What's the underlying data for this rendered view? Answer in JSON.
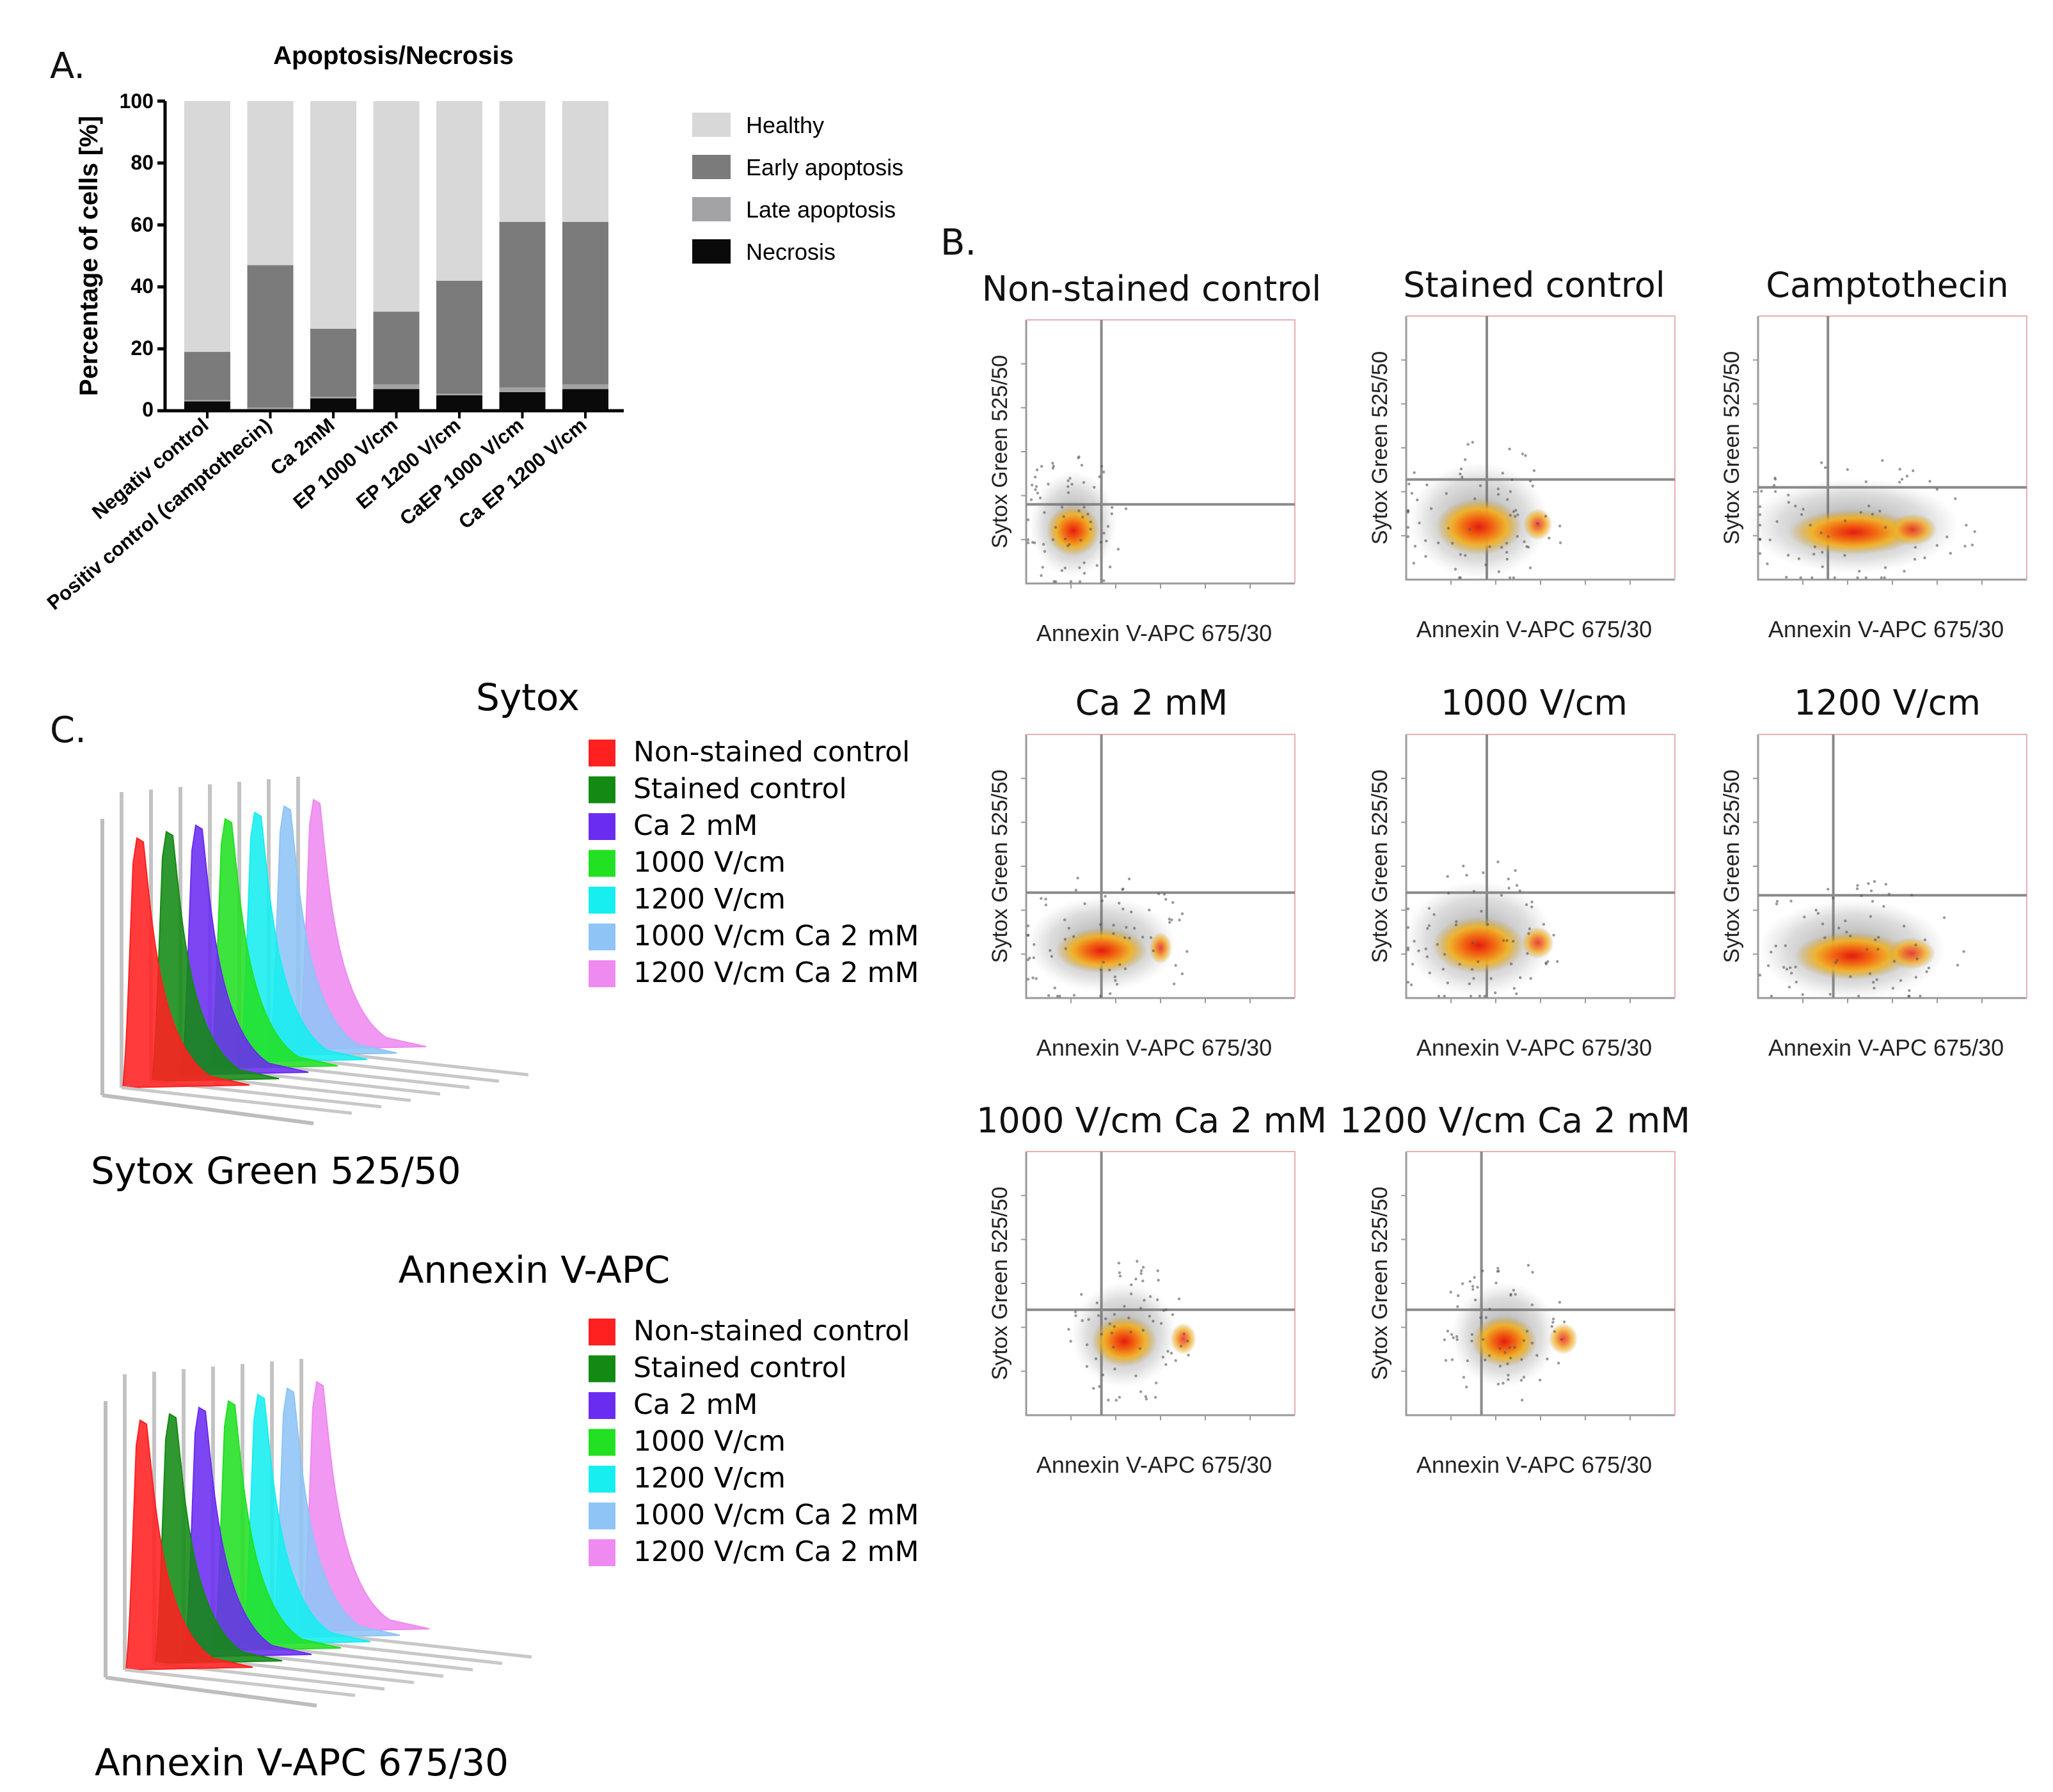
{
  "panels": {
    "a": "A.",
    "b": "B.",
    "c": "C."
  },
  "chart_data": [
    {
      "type": "bar",
      "stacked": true,
      "title": "Apoptosis/Necrosis",
      "xlabel": "",
      "ylabel": "Percentage of cells [%]",
      "ylim": [
        0,
        100
      ],
      "yticks": [
        "0",
        "20",
        "40",
        "60",
        "80",
        "100"
      ],
      "categories": [
        "Negativ control",
        "Positiv control (camptothecin)",
        "Ca 2mM",
        "EP 1000 V/cm",
        "EP 1200 V/cm",
        "CaEP 1000 V/cm",
        "Ca EP 1200 V/cm"
      ],
      "series": [
        {
          "name": "Necrosis",
          "color": "#0a0a0a",
          "values": [
            3,
            0.5,
            4,
            7,
            5,
            6,
            7
          ]
        },
        {
          "name": "Late apoptosis",
          "color": "#a3a3a6",
          "values": [
            0.5,
            0.5,
            0.5,
            1.5,
            0.5,
            1.5,
            1.5
          ]
        },
        {
          "name": "Early apoptosis",
          "color": "#7b7b7b",
          "values": [
            15.5,
            46,
            22,
            23.5,
            36.5,
            53.5,
            52.5
          ]
        },
        {
          "name": "Healthy",
          "color": "#d8d8d8",
          "values": [
            81,
            53,
            73.5,
            68,
            58,
            39,
            39
          ]
        }
      ],
      "legend_order": [
        "Healthy",
        "Early apoptosis",
        "Late apoptosis",
        "Necrosis"
      ],
      "legend_placement": "right"
    },
    {
      "type": "scatter",
      "subtype": "flow-cytometry-density-plots",
      "xlabel": "Annexin V-APC 675/30",
      "ylabel": "Sytox Green 525/50",
      "plots": [
        {
          "title": "Non-stained control"
        },
        {
          "title": "Stained control"
        },
        {
          "title": "Camptothecin"
        },
        {
          "title": "Ca 2 mM"
        },
        {
          "title": "1000 V/cm"
        },
        {
          "title": "1200 V/cm"
        },
        {
          "title": "1000 V/cm Ca 2 mM"
        },
        {
          "title": "1200 V/cm Ca 2 mM"
        }
      ]
    },
    {
      "type": "area",
      "subtype": "offset-histograms",
      "title": "Sytox",
      "xlabel": "Sytox Green 525/50",
      "legend": [
        {
          "name": "Non-stained control",
          "color": "#ff2020"
        },
        {
          "name": "Stained control",
          "color": "#138a13"
        },
        {
          "name": "Ca 2 mM",
          "color": "#6a2cf0"
        },
        {
          "name": "1000 V/cm",
          "color": "#22e022"
        },
        {
          "name": "1200 V/cm",
          "color": "#16eef0"
        },
        {
          "name": "1000 V/cm Ca 2 mM",
          "color": "#8ec4f6"
        },
        {
          "name": "1200 V/cm Ca 2 mM",
          "color": "#ee8af0"
        }
      ]
    },
    {
      "type": "area",
      "subtype": "offset-histograms",
      "title": "Annexin V-APC",
      "xlabel": "Annexin V-APC 675/30",
      "legend": [
        {
          "name": "Non-stained control",
          "color": "#ff2020"
        },
        {
          "name": "Stained control",
          "color": "#138a13"
        },
        {
          "name": "Ca 2 mM",
          "color": "#6a2cf0"
        },
        {
          "name": "1000 V/cm",
          "color": "#22e022"
        },
        {
          "name": "1200 V/cm",
          "color": "#16eef0"
        },
        {
          "name": "1000 V/cm Ca 2 mM",
          "color": "#8ec4f6"
        },
        {
          "name": "1200 V/cm Ca 2 mM",
          "color": "#ee8af0"
        }
      ]
    }
  ]
}
